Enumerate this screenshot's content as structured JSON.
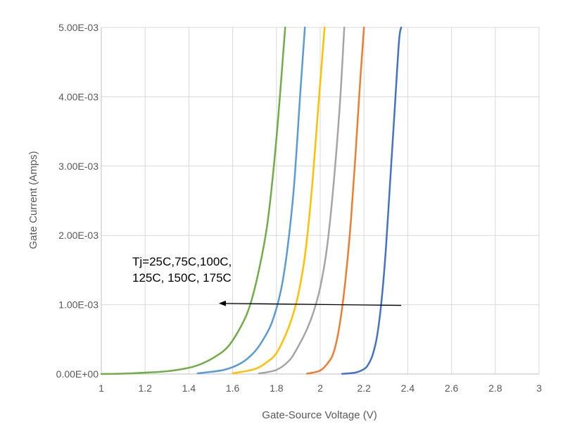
{
  "chart_data": {
    "type": "line",
    "title": "",
    "xlabel": "Gate-Source Voltage (V)",
    "ylabel": "Gate Current (Amps)",
    "xlim": [
      1,
      3
    ],
    "ylim": [
      0,
      0.005
    ],
    "x_ticks": [
      1,
      1.2,
      1.4,
      1.6,
      1.8,
      2,
      2.2,
      2.4,
      2.6,
      2.8,
      3
    ],
    "x_tick_labels": [
      "1",
      "1.2",
      "1.4",
      "1.6",
      "1.8",
      "2",
      "2.2",
      "2.4",
      "2.6",
      "2.8",
      "3"
    ],
    "y_ticks": [
      0,
      0.001,
      0.002,
      0.003,
      0.004,
      0.005
    ],
    "y_tick_labels": [
      "0.00E+00",
      "1.00E-03",
      "2.00E-03",
      "3.00E-03",
      "4.00E-03",
      "5.00E-03"
    ],
    "grid": true,
    "legend": "none",
    "series": [
      {
        "color": "#4472c4",
        "x": [
          2.1,
          2.16,
          2.2,
          2.22,
          2.24,
          2.26,
          2.28,
          2.3,
          2.32,
          2.34,
          2.36,
          2.37
        ],
        "values": [
          2e-06,
          2e-05,
          7e-05,
          0.00014,
          0.00028,
          0.00055,
          0.00105,
          0.0018,
          0.0028,
          0.0038,
          0.0048,
          0.005
        ]
      },
      {
        "color": "#ed7d31",
        "x": [
          1.94,
          2.0,
          2.04,
          2.06,
          2.08,
          2.1,
          2.12,
          2.14,
          2.16,
          2.18,
          2.2
        ],
        "values": [
          5e-06,
          5e-05,
          0.00018,
          0.0003,
          0.00055,
          0.00095,
          0.0015,
          0.0022,
          0.0031,
          0.0041,
          0.005
        ]
      },
      {
        "color": "#a5a5a5",
        "x": [
          1.72,
          1.8,
          1.86,
          1.9,
          1.94,
          1.97,
          2.0,
          2.03,
          2.06,
          2.09,
          2.11
        ],
        "values": [
          8e-06,
          6e-05,
          0.0002,
          0.0004,
          0.00065,
          0.0009,
          0.00125,
          0.0018,
          0.0027,
          0.0039,
          0.005
        ]
      },
      {
        "color": "#ffc000",
        "x": [
          1.6,
          1.7,
          1.76,
          1.8,
          1.84,
          1.87,
          1.9,
          1.93,
          1.96,
          1.99,
          2.02
        ],
        "values": [
          1e-05,
          7e-05,
          0.00018,
          0.0003,
          0.00055,
          0.0008,
          0.00115,
          0.0017,
          0.0026,
          0.0038,
          0.005
        ]
      },
      {
        "color": "#5b9bd5",
        "x": [
          1.44,
          1.56,
          1.64,
          1.7,
          1.74,
          1.78,
          1.82,
          1.85,
          1.88,
          1.91,
          1.93
        ],
        "values": [
          1e-05,
          6e-05,
          0.00016,
          0.00032,
          0.0005,
          0.00075,
          0.0012,
          0.0018,
          0.0027,
          0.0041,
          0.005
        ]
      },
      {
        "color": "#70ad47",
        "x": [
          1.0,
          1.1,
          1.2,
          1.3,
          1.4,
          1.46,
          1.52,
          1.58,
          1.64,
          1.68,
          1.72,
          1.76,
          1.8,
          1.84
        ],
        "values": [
          0.0,
          5e-06,
          2e-05,
          4e-05,
          9e-05,
          0.00015,
          0.00025,
          0.0004,
          0.0007,
          0.001,
          0.0015,
          0.0022,
          0.0034,
          0.005
        ]
      }
    ],
    "annotations": [
      {
        "text_lines": [
          "Tj=25C,75C,100C,",
          "125C, 150C, 175C"
        ],
        "arrow_from": [
          2.37,
          0.00099
        ],
        "arrow_to": [
          1.54,
          0.00102
        ]
      }
    ]
  }
}
